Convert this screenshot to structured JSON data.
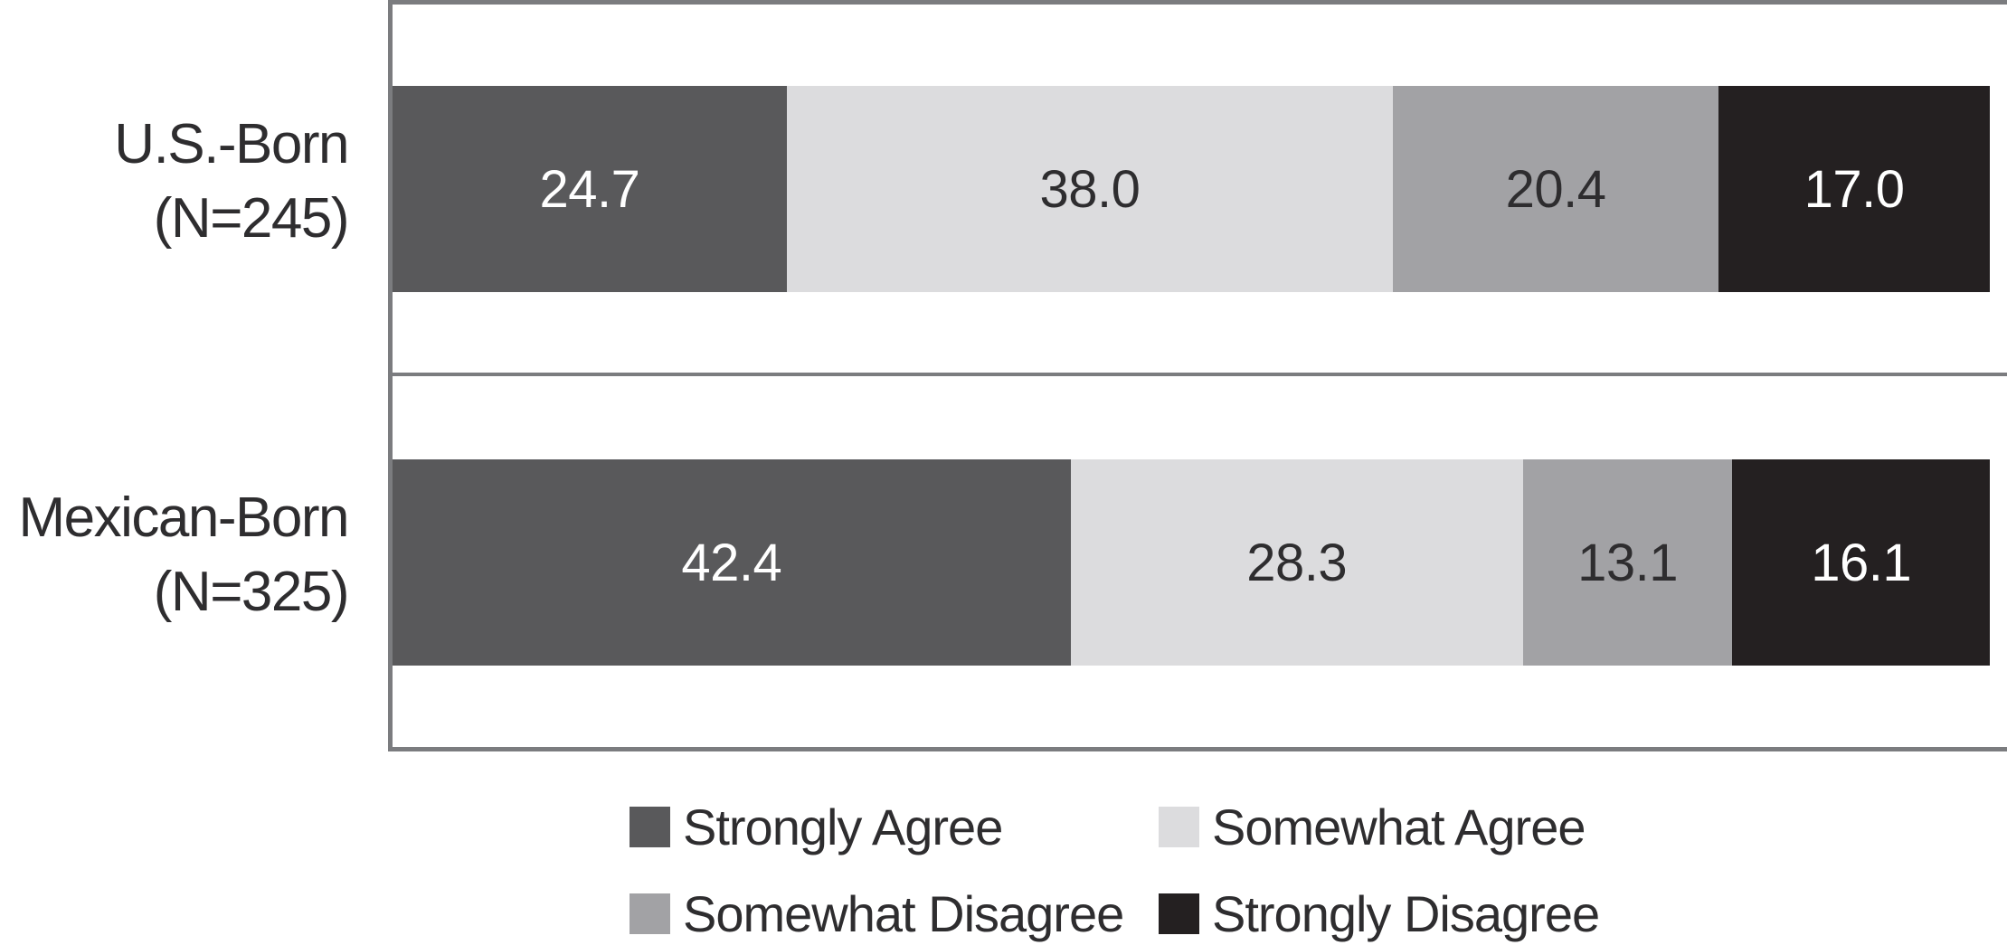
{
  "figure": {
    "background_color": "#ffffff",
    "frame_color": "#7b7c7f",
    "text_color": "#2e2d2f"
  },
  "rows": [
    {
      "label_line1": "U.S.-Born",
      "label_line2": "(N=245)"
    },
    {
      "label_line1": "Mexican-Born",
      "label_line2": "(N=325)"
    }
  ],
  "chart_data": {
    "type": "bar",
    "stacked": true,
    "orientation": "horizontal",
    "categories": [
      "U.S.-Born (N=245)",
      "Mexican-Born (N=325)"
    ],
    "series": [
      {
        "name": "Strongly Agree",
        "color": "#59595b",
        "label_color": "#ffffff",
        "values": [
          24.7,
          42.4
        ]
      },
      {
        "name": "Somewhat Agree",
        "color": "#dcdcde",
        "label_color": "#2e2d2f",
        "values": [
          38.0,
          28.3
        ]
      },
      {
        "name": "Somewhat Disagree",
        "color": "#a2a2a5",
        "label_color": "#2e2d2f",
        "values": [
          20.4,
          13.1
        ]
      },
      {
        "name": "Strongly Disagree",
        "color": "#242021",
        "label_color": "#ffffff",
        "values": [
          17.0,
          16.1
        ]
      }
    ],
    "value_labels": [
      [
        "24.7",
        "38.0",
        "20.4",
        "17.0"
      ],
      [
        "42.4",
        "28.3",
        "13.1",
        "16.1"
      ]
    ],
    "xlim": [
      0,
      100
    ],
    "grid": false,
    "legend_position": "bottom",
    "legend_rows": [
      [
        "Strongly Agree",
        "Somewhat Agree"
      ],
      [
        "Somewhat Disagree",
        "Strongly Disagree"
      ]
    ]
  }
}
